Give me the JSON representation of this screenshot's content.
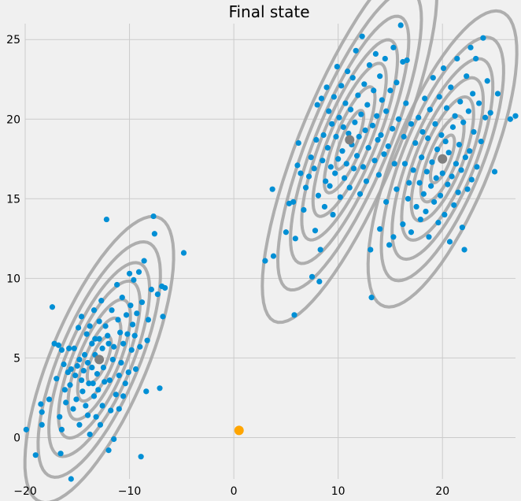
{
  "chart_data": {
    "type": "scatter",
    "title": "Final state",
    "xlabel": "",
    "ylabel": "",
    "xlim": [
      -20,
      27
    ],
    "ylim": [
      -2.6,
      26
    ],
    "xticks": [
      -20,
      -10,
      0,
      10,
      20
    ],
    "yticks": [
      0,
      5,
      10,
      15,
      20,
      25
    ],
    "grid": true,
    "colors": {
      "background": "#f0f0f0",
      "points": "#008fd5",
      "contours": "#a6a6a6",
      "centers": "#808080",
      "marker": "#ffa500"
    },
    "clusters": [
      {
        "center": [
          -12.9,
          4.9
        ],
        "sx": 2.3,
        "sy": 2.9,
        "rho": 0.72,
        "levels": [
          0.5,
          0.9,
          1.3,
          1.7,
          2.1,
          2.55,
          3.1
        ]
      },
      {
        "center": [
          11.1,
          18.7
        ],
        "sx": 2.7,
        "sy": 3.7,
        "rho": 0.8,
        "levels": [
          0.5,
          0.9,
          1.3,
          1.7,
          2.1,
          2.55,
          3.1
        ]
      },
      {
        "center": [
          20.0,
          17.5
        ],
        "sx": 2.3,
        "sy": 3.0,
        "rho": 0.72,
        "levels": [
          0.5,
          0.9,
          1.3,
          1.7,
          2.1,
          2.55,
          3.1
        ]
      }
    ],
    "centers": [
      [
        -12.9,
        4.9
      ],
      [
        11.1,
        18.7
      ],
      [
        20.0,
        17.5
      ]
    ],
    "marker": [
      0.5,
      0.45
    ],
    "points": [
      [
        -19.9,
        0.5
      ],
      [
        -19.0,
        -1.1
      ],
      [
        -18.5,
        2.1
      ],
      [
        -18.4,
        1.6
      ],
      [
        -18.4,
        0.8
      ],
      [
        -17.7,
        2.4
      ],
      [
        -17.4,
        8.2
      ],
      [
        -17.2,
        5.9
      ],
      [
        -17.0,
        3.7
      ],
      [
        -16.8,
        5.8
      ],
      [
        -16.7,
        1.3
      ],
      [
        -16.6,
        -1.0
      ],
      [
        -16.5,
        0.5
      ],
      [
        -16.5,
        5.5
      ],
      [
        -16.3,
        4.6
      ],
      [
        -16.2,
        3.0
      ],
      [
        -16.1,
        2.2
      ],
      [
        -15.9,
        4.1
      ],
      [
        -15.8,
        5.6
      ],
      [
        -15.7,
        3.3
      ],
      [
        -15.6,
        4.3
      ],
      [
        -15.6,
        -2.6
      ],
      [
        -15.4,
        1.8
      ],
      [
        -15.3,
        5.6
      ],
      [
        -15.2,
        3.9
      ],
      [
        -15.1,
        2.4
      ],
      [
        -15.0,
        4.5
      ],
      [
        -14.9,
        6.9
      ],
      [
        -14.8,
        4.9
      ],
      [
        -14.8,
        0.8
      ],
      [
        -14.6,
        7.6
      ],
      [
        -14.6,
        3.6
      ],
      [
        -14.5,
        2.9
      ],
      [
        -14.4,
        4.2
      ],
      [
        -14.3,
        5.2
      ],
      [
        -14.2,
        2.0
      ],
      [
        -14.1,
        6.5
      ],
      [
        -14.0,
        4.7
      ],
      [
        -14.0,
        1.4
      ],
      [
        -13.9,
        3.4
      ],
      [
        -13.8,
        7.0
      ],
      [
        -13.8,
        0.2
      ],
      [
        -13.6,
        5.9
      ],
      [
        -13.6,
        4.4
      ],
      [
        -13.5,
        3.4
      ],
      [
        -13.4,
        8.0
      ],
      [
        -13.4,
        2.6
      ],
      [
        -13.3,
        6.2
      ],
      [
        -13.3,
        5.2
      ],
      [
        -13.2,
        1.3
      ],
      [
        -13.1,
        4.0
      ],
      [
        -13.0,
        3.0
      ],
      [
        -12.9,
        7.3
      ],
      [
        -12.9,
        6.2
      ],
      [
        -12.8,
        0.8
      ],
      [
        -12.7,
        8.6
      ],
      [
        -12.6,
        5.6
      ],
      [
        -12.6,
        2.0
      ],
      [
        -12.5,
        4.4
      ],
      [
        -12.4,
        3.5
      ],
      [
        -12.3,
        7.0
      ],
      [
        -12.2,
        13.7
      ],
      [
        -12.1,
        6.4
      ],
      [
        -12.0,
        5.9
      ],
      [
        -12.0,
        -0.8
      ],
      [
        -11.9,
        3.6
      ],
      [
        -11.8,
        1.7
      ],
      [
        -11.7,
        8.0
      ],
      [
        -11.6,
        4.9
      ],
      [
        -11.5,
        5.7
      ],
      [
        -11.5,
        -0.1
      ],
      [
        -11.3,
        2.7
      ],
      [
        -11.2,
        9.6
      ],
      [
        -11.1,
        7.4
      ],
      [
        -11.0,
        3.9
      ],
      [
        -11.0,
        1.8
      ],
      [
        -10.9,
        6.6
      ],
      [
        -10.8,
        4.7
      ],
      [
        -10.7,
        8.8
      ],
      [
        -10.6,
        2.6
      ],
      [
        -10.6,
        5.9
      ],
      [
        -10.4,
        3.4
      ],
      [
        -10.3,
        7.7
      ],
      [
        -10.2,
        6.5
      ],
      [
        -10.1,
        4.1
      ],
      [
        -10.0,
        10.3
      ],
      [
        -9.9,
        8.3
      ],
      [
        -9.8,
        5.5
      ],
      [
        -9.7,
        7.1
      ],
      [
        -9.6,
        9.9
      ],
      [
        -9.5,
        6.4
      ],
      [
        -9.4,
        4.3
      ],
      [
        -9.3,
        7.8
      ],
      [
        -9.1,
        10.4
      ],
      [
        -9.0,
        5.7
      ],
      [
        -8.9,
        -1.2
      ],
      [
        -8.8,
        8.5
      ],
      [
        -8.6,
        11.1
      ],
      [
        -8.4,
        2.9
      ],
      [
        -8.3,
        6.1
      ],
      [
        -8.2,
        7.4
      ],
      [
        -7.9,
        9.3
      ],
      [
        -7.7,
        13.9
      ],
      [
        -7.6,
        12.8
      ],
      [
        -7.3,
        9.0
      ],
      [
        -7.1,
        3.1
      ],
      [
        -6.9,
        9.5
      ],
      [
        -6.8,
        7.6
      ],
      [
        -6.6,
        9.4
      ],
      [
        -4.8,
        11.6
      ],
      [
        3.0,
        11.1
      ],
      [
        3.7,
        15.6
      ],
      [
        3.8,
        11.4
      ],
      [
        5.0,
        12.9
      ],
      [
        5.3,
        14.7
      ],
      [
        5.7,
        14.8
      ],
      [
        5.8,
        7.7
      ],
      [
        5.9,
        12.5
      ],
      [
        6.1,
        17.1
      ],
      [
        6.2,
        18.5
      ],
      [
        6.4,
        16.6
      ],
      [
        6.7,
        14.3
      ],
      [
        6.9,
        15.7
      ],
      [
        7.2,
        16.4
      ],
      [
        7.4,
        17.6
      ],
      [
        7.5,
        10.1
      ],
      [
        7.7,
        16.9
      ],
      [
        7.8,
        13.0
      ],
      [
        7.9,
        18.7
      ],
      [
        8.0,
        20.9
      ],
      [
        8.1,
        15.2
      ],
      [
        8.2,
        9.8
      ],
      [
        8.3,
        11.8
      ],
      [
        8.4,
        21.3
      ],
      [
        8.5,
        17.4
      ],
      [
        8.6,
        19.0
      ],
      [
        8.7,
        14.5
      ],
      [
        8.8,
        16.1
      ],
      [
        8.9,
        22.0
      ],
      [
        9.0,
        18.2
      ],
      [
        9.1,
        20.5
      ],
      [
        9.2,
        15.8
      ],
      [
        9.3,
        17.0
      ],
      [
        9.4,
        19.7
      ],
      [
        9.5,
        14.0
      ],
      [
        9.6,
        21.4
      ],
      [
        9.7,
        16.6
      ],
      [
        9.8,
        18.9
      ],
      [
        9.9,
        23.3
      ],
      [
        10.0,
        17.5
      ],
      [
        10.1,
        20.1
      ],
      [
        10.2,
        15.1
      ],
      [
        10.3,
        22.1
      ],
      [
        10.4,
        18.0
      ],
      [
        10.5,
        19.5
      ],
      [
        10.6,
        16.3
      ],
      [
        10.7,
        21.0
      ],
      [
        10.8,
        17.2
      ],
      [
        10.9,
        23.0
      ],
      [
        11.0,
        19.1
      ],
      [
        11.1,
        15.7
      ],
      [
        11.2,
        20.6
      ],
      [
        11.3,
        18.4
      ],
      [
        11.4,
        22.6
      ],
      [
        11.5,
        16.9
      ],
      [
        11.6,
        19.8
      ],
      [
        11.7,
        24.3
      ],
      [
        11.8,
        17.7
      ],
      [
        11.9,
        21.5
      ],
      [
        12.0,
        18.9
      ],
      [
        12.1,
        15.3
      ],
      [
        12.2,
        20.3
      ],
      [
        12.3,
        25.2
      ],
      [
        12.4,
        17.0
      ],
      [
        12.5,
        22.2
      ],
      [
        12.6,
        19.3
      ],
      [
        12.7,
        16.1
      ],
      [
        12.8,
        20.9
      ],
      [
        12.9,
        18.2
      ],
      [
        13.0,
        23.4
      ],
      [
        13.1,
        11.8
      ],
      [
        13.2,
        8.8
      ],
      [
        13.3,
        19.6
      ],
      [
        13.4,
        21.8
      ],
      [
        13.5,
        17.4
      ],
      [
        13.6,
        24.1
      ],
      [
        13.7,
        20.2
      ],
      [
        13.8,
        18.7
      ],
      [
        13.9,
        16.5
      ],
      [
        14.0,
        22.7
      ],
      [
        14.1,
        19.0
      ],
      [
        14.2,
        21.2
      ],
      [
        14.4,
        17.8
      ],
      [
        14.5,
        23.8
      ],
      [
        14.6,
        20.5
      ],
      [
        14.8,
        18.3
      ],
      [
        14.9,
        12.1
      ],
      [
        15.0,
        21.8
      ],
      [
        15.2,
        19.4
      ],
      [
        15.3,
        24.5
      ],
      [
        15.4,
        17.2
      ],
      [
        15.6,
        22.3
      ],
      [
        15.8,
        20.0
      ],
      [
        16.0,
        25.9
      ],
      [
        16.2,
        23.6
      ],
      [
        16.3,
        18.9
      ],
      [
        16.5,
        21.0
      ],
      [
        16.6,
        23.7
      ],
      [
        16.8,
        16.0
      ],
      [
        17.0,
        19.7
      ],
      [
        14.0,
        13.1
      ],
      [
        14.6,
        14.8
      ],
      [
        15.3,
        12.6
      ],
      [
        15.6,
        15.6
      ],
      [
        16.2,
        13.4
      ],
      [
        16.4,
        17.2
      ],
      [
        16.7,
        15.0
      ],
      [
        17.0,
        12.9
      ],
      [
        17.2,
        16.8
      ],
      [
        17.4,
        18.5
      ],
      [
        17.5,
        14.5
      ],
      [
        17.7,
        20.1
      ],
      [
        17.8,
        16.0
      ],
      [
        17.9,
        13.7
      ],
      [
        18.0,
        17.6
      ],
      [
        18.1,
        19.2
      ],
      [
        18.2,
        15.3
      ],
      [
        18.3,
        21.3
      ],
      [
        18.4,
        14.2
      ],
      [
        18.5,
        16.7
      ],
      [
        18.6,
        18.8
      ],
      [
        18.7,
        12.6
      ],
      [
        18.8,
        20.6
      ],
      [
        18.9,
        15.8
      ],
      [
        19.0,
        17.3
      ],
      [
        19.1,
        22.6
      ],
      [
        19.2,
        14.8
      ],
      [
        19.3,
        19.7
      ],
      [
        19.4,
        16.3
      ],
      [
        19.5,
        18.1
      ],
      [
        19.6,
        13.5
      ],
      [
        19.7,
        21.4
      ],
      [
        19.8,
        15.2
      ],
      [
        19.9,
        19.0
      ],
      [
        20.0,
        16.6
      ],
      [
        20.1,
        23.2
      ],
      [
        20.2,
        14.0
      ],
      [
        20.3,
        18.6
      ],
      [
        20.4,
        20.7
      ],
      [
        20.5,
        15.9
      ],
      [
        20.6,
        17.9
      ],
      [
        20.7,
        12.3
      ],
      [
        20.8,
        22.0
      ],
      [
        20.9,
        16.4
      ],
      [
        21.0,
        19.5
      ],
      [
        21.1,
        14.6
      ],
      [
        21.2,
        20.2
      ],
      [
        21.3,
        17.2
      ],
      [
        21.4,
        23.8
      ],
      [
        21.5,
        15.4
      ],
      [
        21.6,
        18.4
      ],
      [
        21.7,
        21.1
      ],
      [
        21.8,
        16.8
      ],
      [
        21.9,
        13.2
      ],
      [
        22.0,
        19.8
      ],
      [
        22.1,
        11.8
      ],
      [
        22.2,
        17.6
      ],
      [
        22.3,
        22.7
      ],
      [
        22.4,
        15.6
      ],
      [
        22.5,
        20.5
      ],
      [
        22.6,
        18.0
      ],
      [
        22.7,
        24.5
      ],
      [
        22.8,
        16.2
      ],
      [
        22.9,
        21.6
      ],
      [
        23.0,
        19.2
      ],
      [
        23.2,
        23.8
      ],
      [
        23.3,
        17.0
      ],
      [
        23.5,
        21.0
      ],
      [
        23.7,
        18.6
      ],
      [
        23.9,
        25.1
      ],
      [
        24.1,
        20.1
      ],
      [
        24.3,
        22.4
      ],
      [
        24.6,
        20.4
      ],
      [
        25.0,
        16.7
      ],
      [
        25.3,
        21.6
      ],
      [
        26.5,
        20.0
      ],
      [
        27.0,
        20.2
      ]
    ]
  }
}
